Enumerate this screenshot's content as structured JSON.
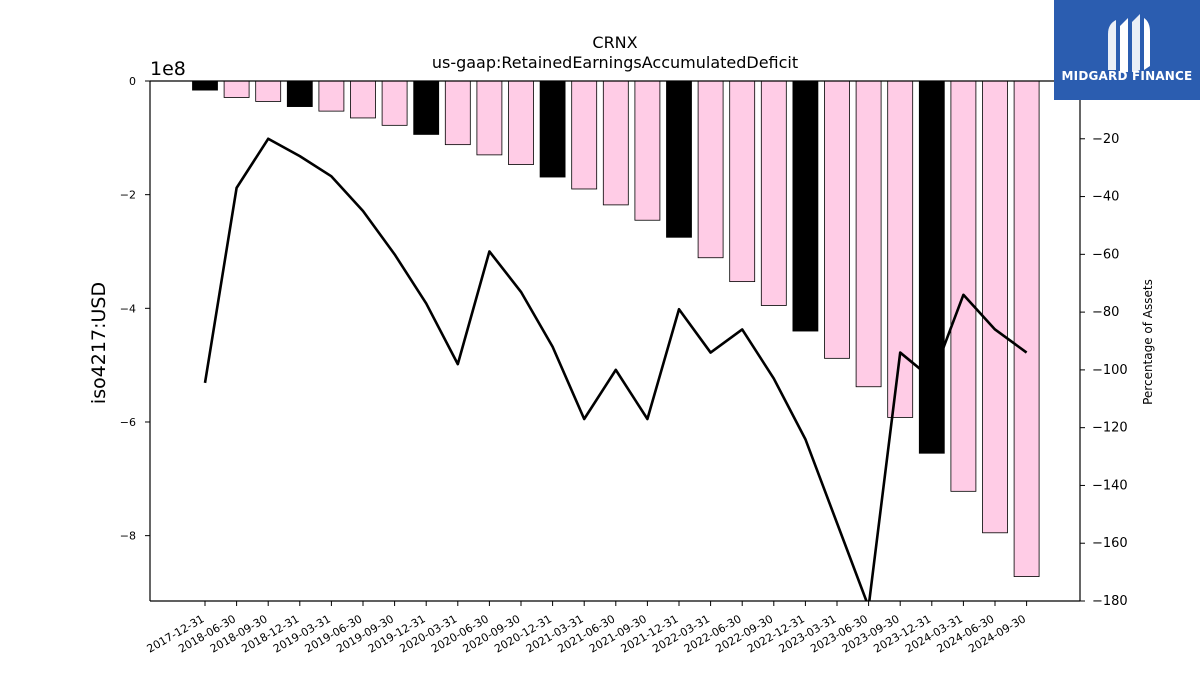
{
  "chart_data": {
    "type": "bar",
    "title": "CRNX",
    "subtitle": "us-gaap:RetainedEarningsAccumulatedDeficit",
    "ylabel": "iso4217:USD",
    "y2label": "Percentage of Assets",
    "y_multiplier": "1e8",
    "ylim": [
      -915000000.0,
      0
    ],
    "y2lim": [
      -180,
      0
    ],
    "categories": [
      "2017-12-31",
      "2018-06-30",
      "2018-09-30",
      "2018-12-31",
      "2019-03-31",
      "2019-06-30",
      "2019-09-30",
      "2019-12-31",
      "2020-03-31",
      "2020-06-30",
      "2020-09-30",
      "2020-12-31",
      "2021-03-31",
      "2021-06-30",
      "2021-09-30",
      "2021-12-31",
      "2022-03-31",
      "2022-06-30",
      "2022-09-30",
      "2022-12-31",
      "2023-03-31",
      "2023-06-30",
      "2023-09-30",
      "2023-12-31",
      "2024-03-31",
      "2024-06-30",
      "2024-09-30"
    ],
    "series": [
      {
        "values": [
          -16000000.0,
          -29000000.0,
          -36000000.0,
          -45000000.0,
          -53000000.0,
          -65000000.0,
          -78000000.0,
          -94000000.0,
          -112000000.0,
          -130000000.0,
          -147000000.0,
          -169000000.0,
          -190000000.0,
          -218000000.0,
          -245000000.0,
          -275000000.0,
          -311000000.0,
          -353000000.0,
          -395000000.0,
          -440000000.0,
          -488000000.0,
          -538000000.0,
          -592000000.0,
          -655000000.0,
          -722000000.0,
          -795000000.0,
          -872000000.0
        ],
        "colors": [
          "#000000",
          "#ffcce6",
          "#ffcce6",
          "#000000",
          "#ffcce6",
          "#ffcce6",
          "#ffcce6",
          "#000000",
          "#ffcce6",
          "#ffcce6",
          "#ffcce6",
          "#000000",
          "#ffcce6",
          "#ffcce6",
          "#ffcce6",
          "#000000",
          "#ffcce6",
          "#ffcce6",
          "#ffcce6",
          "#000000",
          "#ffcce6",
          "#ffcce6",
          "#ffcce6",
          "#000000",
          "#ffcce6",
          "#ffcce6",
          "#ffcce6"
        ]
      },
      {
        "type": "line",
        "axis": "right",
        "color": "#000000",
        "values": [
          -104.5,
          -37,
          -20,
          -26,
          -33,
          -45,
          -60,
          -77,
          -98,
          -59,
          -73,
          -92,
          -117,
          -100,
          -117,
          -79,
          -94,
          -86,
          -103,
          -124,
          -153,
          -182,
          -94,
          -103,
          -74,
          -86,
          -94
        ]
      }
    ],
    "yticks": [
      {
        "value": 0,
        "label": "0"
      },
      {
        "value": -200000000.0,
        "label": "−2"
      },
      {
        "value": -400000000.0,
        "label": "−4"
      },
      {
        "value": -600000000.0,
        "label": "−6"
      },
      {
        "value": -800000000.0,
        "label": "−8"
      }
    ],
    "y2ticks": [
      {
        "value": -20,
        "label": "−20"
      },
      {
        "value": -40,
        "label": "−40"
      },
      {
        "value": -60,
        "label": "−60"
      },
      {
        "value": -80,
        "label": "−80"
      },
      {
        "value": -100,
        "label": "−100"
      },
      {
        "value": -120,
        "label": "−120"
      },
      {
        "value": -140,
        "label": "−140"
      },
      {
        "value": -160,
        "label": "−160"
      },
      {
        "value": -180,
        "label": "−180"
      }
    ],
    "grid": false,
    "legend": "none"
  },
  "logo": {
    "text": "MIDGARD FINANCE",
    "color": "#2b5db0"
  }
}
